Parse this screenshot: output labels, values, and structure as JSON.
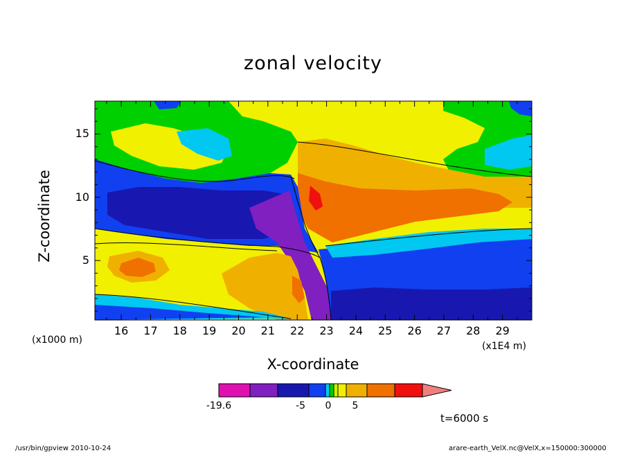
{
  "chart_data": {
    "type": "heatmap",
    "title": "zonal velocity",
    "xlabel": "X-coordinate",
    "ylabel": "Z-coordinate",
    "x_unit_left": "(x1000 m)",
    "x_unit_right": "(x1E4 m)",
    "xlim": [
      15.1,
      30.0
    ],
    "ylim": [
      0.3,
      17.6
    ],
    "x_ticks": [
      "16",
      "17",
      "18",
      "19",
      "20",
      "21",
      "22",
      "23",
      "24",
      "25",
      "26",
      "27",
      "28",
      "29"
    ],
    "y_ticks": [
      "5",
      "10",
      "15"
    ],
    "colorbar": {
      "colors": [
        "#e010b0",
        "#8020c0",
        "#1818b0",
        "#1040f0",
        "#00c8f0",
        "#00d000",
        "#c8f000",
        "#f0f000",
        "#f0b000",
        "#f07000",
        "#f01010",
        "#f08080"
      ],
      "tick_labels": [
        "-19.6",
        "-5",
        "0",
        "5"
      ]
    },
    "time_label": "t=6000 s",
    "footer_left": "/usr/bin/gpview   2010-10-24",
    "footer_right": "arare-earth_VelX.nc@VelX,x=150000:300000"
  }
}
